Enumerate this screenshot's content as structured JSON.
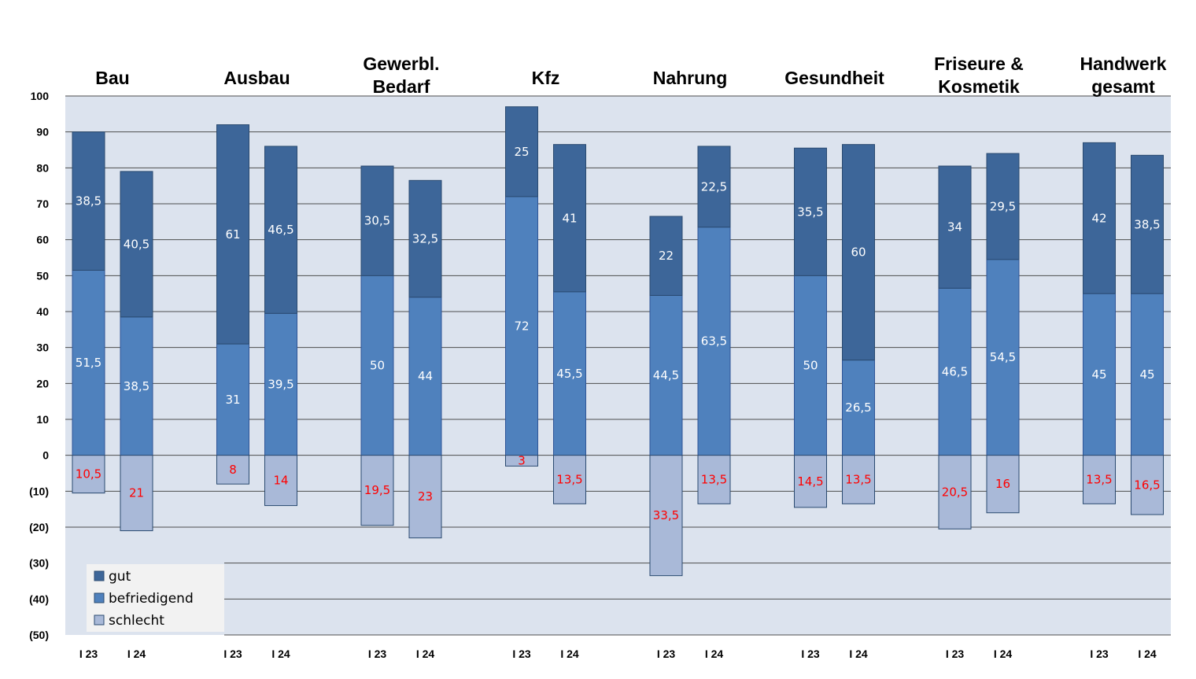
{
  "chart_data": {
    "type": "bar",
    "stacked": true,
    "ylim": [
      -50,
      100
    ],
    "ytick_values": [
      100,
      90,
      80,
      70,
      60,
      50,
      40,
      30,
      20,
      10,
      0,
      -10,
      -20,
      -30,
      -40,
      -50
    ],
    "ytick_labels": [
      "100",
      "90",
      "80",
      "70",
      "60",
      "50",
      "40",
      "30",
      "20",
      "10",
      "0",
      "(10)",
      "(20)",
      "(30)",
      "(40)",
      "(50)"
    ],
    "grid": true,
    "legend_position": "bottom-left",
    "colors": {
      "gut": "#3d6699",
      "befriedigend": "#4f81bd",
      "schlecht": "#a9b9d8",
      "plot_bg": "#dce3ee",
      "neg_label": "#ff0000",
      "pos_label": "#ffffff"
    },
    "series": [
      {
        "name": "gut"
      },
      {
        "name": "befriedigend"
      },
      {
        "name": "schlecht"
      }
    ],
    "groups": [
      {
        "title_lines": [
          "Bau"
        ],
        "bars": [
          {
            "period": "I 23",
            "gut": 38.5,
            "gut_label": "38,5",
            "befriedigend": 51.5,
            "befriedigend_label": "51,5",
            "schlecht": 10.5,
            "schlecht_label": "10,5"
          },
          {
            "period": "I 24",
            "gut": 40.5,
            "gut_label": "40,5",
            "befriedigend": 38.5,
            "befriedigend_label": "38,5",
            "schlecht": 21,
            "schlecht_label": "21"
          }
        ]
      },
      {
        "title_lines": [
          "Ausbau"
        ],
        "bars": [
          {
            "period": "I 23",
            "gut": 61,
            "gut_label": "61",
            "befriedigend": 31,
            "befriedigend_label": "31",
            "schlecht": 8,
            "schlecht_label": "8"
          },
          {
            "period": "I 24",
            "gut": 46.5,
            "gut_label": "46,5",
            "befriedigend": 39.5,
            "befriedigend_label": "39,5",
            "schlecht": 14,
            "schlecht_label": "14"
          }
        ]
      },
      {
        "title_lines": [
          "Gewerbl.",
          "Bedarf"
        ],
        "bars": [
          {
            "period": "I 23",
            "gut": 30.5,
            "gut_label": "30,5",
            "befriedigend": 50,
            "befriedigend_label": "50",
            "schlecht": 19.5,
            "schlecht_label": "19,5"
          },
          {
            "period": "I 24",
            "gut": 32.5,
            "gut_label": "32,5",
            "befriedigend": 44,
            "befriedigend_label": "44",
            "schlecht": 23,
            "schlecht_label": "23"
          }
        ]
      },
      {
        "title_lines": [
          "Kfz"
        ],
        "bars": [
          {
            "period": "I 23",
            "gut": 25,
            "gut_label": "25",
            "befriedigend": 72,
            "befriedigend_label": "72",
            "schlecht": 3,
            "schlecht_label": "3"
          },
          {
            "period": "I 24",
            "gut": 41,
            "gut_label": "41",
            "befriedigend": 45.5,
            "befriedigend_label": "45,5",
            "schlecht": 13.5,
            "schlecht_label": "13,5"
          }
        ]
      },
      {
        "title_lines": [
          "Nahrung"
        ],
        "bars": [
          {
            "period": "I 23",
            "gut": 22,
            "gut_label": "22",
            "befriedigend": 44.5,
            "befriedigend_label": "44,5",
            "schlecht": 33.5,
            "schlecht_label": "33,5"
          },
          {
            "period": "I 24",
            "gut": 22.5,
            "gut_label": "22,5",
            "befriedigend": 63.5,
            "befriedigend_label": "63,5",
            "schlecht": 13.5,
            "schlecht_label": "13,5"
          }
        ]
      },
      {
        "title_lines": [
          "Gesundheit"
        ],
        "bars": [
          {
            "period": "I 23",
            "gut": 35.5,
            "gut_label": "35,5",
            "befriedigend": 50,
            "befriedigend_label": "50",
            "schlecht": 14.5,
            "schlecht_label": "14,5"
          },
          {
            "period": "I 24",
            "gut": 60,
            "gut_label": "60",
            "befriedigend": 26.5,
            "befriedigend_label": "26,5",
            "schlecht": 13.5,
            "schlecht_label": "13,5"
          }
        ]
      },
      {
        "title_lines": [
          "Friseure &",
          "Kosmetik"
        ],
        "bars": [
          {
            "period": "I 23",
            "gut": 34,
            "gut_label": "34",
            "befriedigend": 46.5,
            "befriedigend_label": "46,5",
            "schlecht": 20.5,
            "schlecht_label": "20,5"
          },
          {
            "period": "I 24",
            "gut": 29.5,
            "gut_label": "29,5",
            "befriedigend": 54.5,
            "befriedigend_label": "54,5",
            "schlecht": 16,
            "schlecht_label": "16"
          }
        ]
      },
      {
        "title_lines": [
          "Handwerk",
          "gesamt"
        ],
        "bars": [
          {
            "period": "I 23",
            "gut": 42,
            "gut_label": "42",
            "befriedigend": 45,
            "befriedigend_label": "45",
            "schlecht": 13.5,
            "schlecht_label": "13,5"
          },
          {
            "period": "I 24",
            "gut": 38.5,
            "gut_label": "38,5",
            "befriedigend": 45,
            "befriedigend_label": "45",
            "schlecht": 16.5,
            "schlecht_label": "16,5"
          }
        ]
      }
    ]
  }
}
